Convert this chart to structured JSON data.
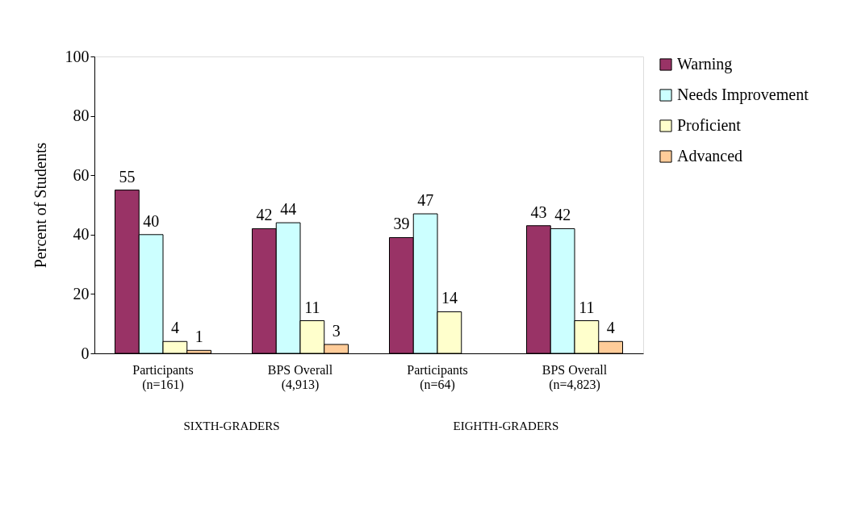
{
  "chart_data": {
    "type": "bar",
    "ylabel": "Percent of Students",
    "categories": [
      "Participants\n(n=161)",
      "BPS Overall\n(4,913)",
      "Participants\n(n=64)",
      "BPS Overall\n(n=4,823)"
    ],
    "series": [
      {
        "name": "Warning",
        "color": "#993366",
        "values": [
          55,
          42,
          39,
          43
        ]
      },
      {
        "name": "Needs Improvement",
        "color": "#ccffff",
        "values": [
          40,
          44,
          47,
          42
        ]
      },
      {
        "name": "Proficient",
        "color": "#ffffcc",
        "values": [
          4,
          11,
          14,
          11
        ]
      },
      {
        "name": "Advanced",
        "color": "#ffcc99",
        "values": [
          1,
          3,
          null,
          4
        ]
      }
    ],
    "ylim": [
      0,
      100
    ],
    "yticks": [
      0,
      20,
      40,
      60,
      80,
      100
    ],
    "grid": false,
    "legend": "right",
    "data_labels": true,
    "annotations": [
      "SIXTH-GRADERS",
      "EIGHTH-GRADERS"
    ]
  }
}
